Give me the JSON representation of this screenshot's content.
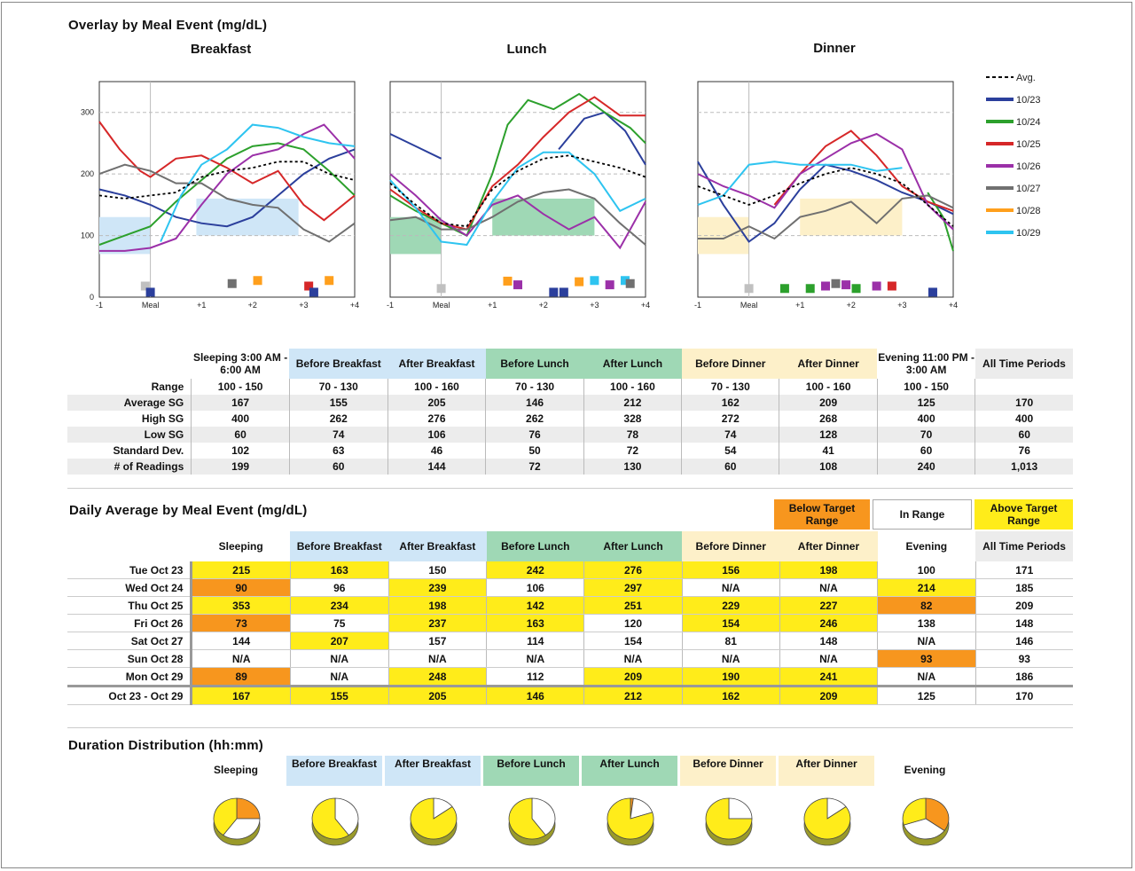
{
  "overlay": {
    "title": "Overlay by Meal Event (mg/dL)",
    "chart_data": [
      {
        "type": "line",
        "title": "Breakfast",
        "x_ticks": [
          "-1",
          "Meal",
          "+1",
          "+2",
          "+3",
          "+4"
        ],
        "y_ticks": [
          "0",
          "100",
          "200",
          "300"
        ],
        "ylim": [
          0,
          350
        ]
      },
      {
        "type": "line",
        "title": "Lunch",
        "x_ticks": [
          "-1",
          "Meal",
          "+1",
          "+2",
          "+3",
          "+4"
        ],
        "y_ticks": [],
        "ylim": [
          0,
          350
        ]
      },
      {
        "type": "line",
        "title": "Dinner",
        "x_ticks": [
          "-1",
          "Meal",
          "+1",
          "+2",
          "+3",
          "+4"
        ],
        "y_ticks": [],
        "ylim": [
          0,
          350
        ]
      }
    ],
    "legend": [
      {
        "label": "Avg.",
        "color": "#000000",
        "dashed": true
      },
      {
        "label": "10/23",
        "color": "#2b3f9c"
      },
      {
        "label": "10/24",
        "color": "#2ca02c"
      },
      {
        "label": "10/25",
        "color": "#d62728"
      },
      {
        "label": "10/26",
        "color": "#9b30a8"
      },
      {
        "label": "10/27",
        "color": "#707070"
      },
      {
        "label": "10/28",
        "color": "#ff9f1c"
      },
      {
        "label": "10/29",
        "color": "#2ec4f0"
      }
    ]
  },
  "summary": {
    "headers": [
      "Sleeping 3:00 AM - 6:00 AM",
      "Before Breakfast",
      "After Breakfast",
      "Before Lunch",
      "After Lunch",
      "Before Dinner",
      "After Dinner",
      "Evening 11:00 PM - 3:00 AM",
      "All Time Periods"
    ],
    "rows": [
      {
        "label": "Range",
        "values": [
          "100 - 150",
          "70 - 130",
          "100 - 160",
          "70 - 130",
          "100 - 160",
          "70 - 130",
          "100 - 160",
          "100 - 150",
          ""
        ]
      },
      {
        "label": "Average SG",
        "values": [
          "167",
          "155",
          "205",
          "146",
          "212",
          "162",
          "209",
          "125",
          "170"
        ]
      },
      {
        "label": "High SG",
        "values": [
          "400",
          "262",
          "276",
          "262",
          "328",
          "272",
          "268",
          "400",
          "400"
        ]
      },
      {
        "label": "Low SG",
        "values": [
          "60",
          "74",
          "106",
          "76",
          "78",
          "74",
          "128",
          "70",
          "60"
        ]
      },
      {
        "label": "Standard Dev.",
        "values": [
          "102",
          "63",
          "46",
          "50",
          "72",
          "54",
          "41",
          "60",
          "76"
        ]
      },
      {
        "label": "# of Readings",
        "values": [
          "199",
          "60",
          "144",
          "72",
          "130",
          "60",
          "108",
          "240",
          "1,013"
        ]
      }
    ]
  },
  "daily": {
    "title": "Daily Average by Meal Event (mg/dL)",
    "legend": {
      "below": "Below Target Range",
      "in": "In Range",
      "above": "Above Target Range"
    },
    "headers": [
      "Sleeping",
      "Before Breakfast",
      "After Breakfast",
      "Before Lunch",
      "After Lunch",
      "Before Dinner",
      "After Dinner",
      "Evening",
      "All Time Periods"
    ],
    "rows": [
      {
        "label": "Tue Oct 23",
        "values": [
          "215",
          "163",
          "150",
          "242",
          "276",
          "156",
          "198",
          "100",
          "171"
        ],
        "flags": [
          "a",
          "a",
          "",
          "a",
          "a",
          "a",
          "a",
          "",
          ""
        ]
      },
      {
        "label": "Wed Oct 24",
        "values": [
          "90",
          "96",
          "239",
          "106",
          "297",
          "N/A",
          "N/A",
          "214",
          "185"
        ],
        "flags": [
          "b",
          "",
          "a",
          "",
          "a",
          "",
          "",
          "a",
          ""
        ]
      },
      {
        "label": "Thu Oct 25",
        "values": [
          "353",
          "234",
          "198",
          "142",
          "251",
          "229",
          "227",
          "82",
          "209"
        ],
        "flags": [
          "a",
          "a",
          "a",
          "a",
          "a",
          "a",
          "a",
          "b",
          ""
        ]
      },
      {
        "label": "Fri Oct 26",
        "values": [
          "73",
          "75",
          "237",
          "163",
          "120",
          "154",
          "246",
          "138",
          "148"
        ],
        "flags": [
          "b",
          "",
          "a",
          "a",
          "",
          "a",
          "a",
          "",
          ""
        ]
      },
      {
        "label": "Sat Oct 27",
        "values": [
          "144",
          "207",
          "157",
          "114",
          "154",
          "81",
          "148",
          "N/A",
          "146"
        ],
        "flags": [
          "",
          "a",
          "",
          "",
          "",
          "",
          "",
          "",
          ""
        ]
      },
      {
        "label": "Sun Oct 28",
        "values": [
          "N/A",
          "N/A",
          "N/A",
          "N/A",
          "N/A",
          "N/A",
          "N/A",
          "93",
          "93"
        ],
        "flags": [
          "",
          "",
          "",
          "",
          "",
          "",
          "",
          "b",
          ""
        ]
      },
      {
        "label": "Mon Oct 29",
        "values": [
          "89",
          "N/A",
          "248",
          "112",
          "209",
          "190",
          "241",
          "N/A",
          "186"
        ],
        "flags": [
          "b",
          "",
          "a",
          "",
          "a",
          "a",
          "a",
          "",
          ""
        ]
      },
      {
        "label": "Oct 23 - Oct 29",
        "values": [
          "167",
          "155",
          "205",
          "146",
          "212",
          "162",
          "209",
          "125",
          "170"
        ],
        "flags": [
          "a",
          "a",
          "a",
          "a",
          "a",
          "a",
          "a",
          "",
          ""
        ]
      }
    ]
  },
  "duration": {
    "title": "Duration Distribution (hh:mm)",
    "headers": [
      "Sleeping",
      "Before Breakfast",
      "After Breakfast",
      "Before Lunch",
      "After Lunch",
      "Before Dinner",
      "After Dinner",
      "Evening"
    ],
    "chart_data": {
      "type": "pie",
      "categories": [
        "Below Target Range",
        "In Range",
        "Above Target Range"
      ],
      "pies": [
        {
          "name": "Sleeping",
          "values": [
            0.25,
            0.35,
            0.4
          ]
        },
        {
          "name": "Before Breakfast",
          "values": [
            0.0,
            0.4,
            0.6
          ]
        },
        {
          "name": "After Breakfast",
          "values": [
            0.0,
            0.15,
            0.85
          ]
        },
        {
          "name": "Before Lunch",
          "values": [
            0.0,
            0.4,
            0.6
          ]
        },
        {
          "name": "After Lunch",
          "values": [
            0.02,
            0.18,
            0.8
          ]
        },
        {
          "name": "Before Dinner",
          "values": [
            0.0,
            0.25,
            0.75
          ]
        },
        {
          "name": "After Dinner",
          "values": [
            0.0,
            0.15,
            0.85
          ]
        },
        {
          "name": "Evening",
          "values": [
            0.35,
            0.35,
            0.3
          ]
        }
      ]
    }
  }
}
